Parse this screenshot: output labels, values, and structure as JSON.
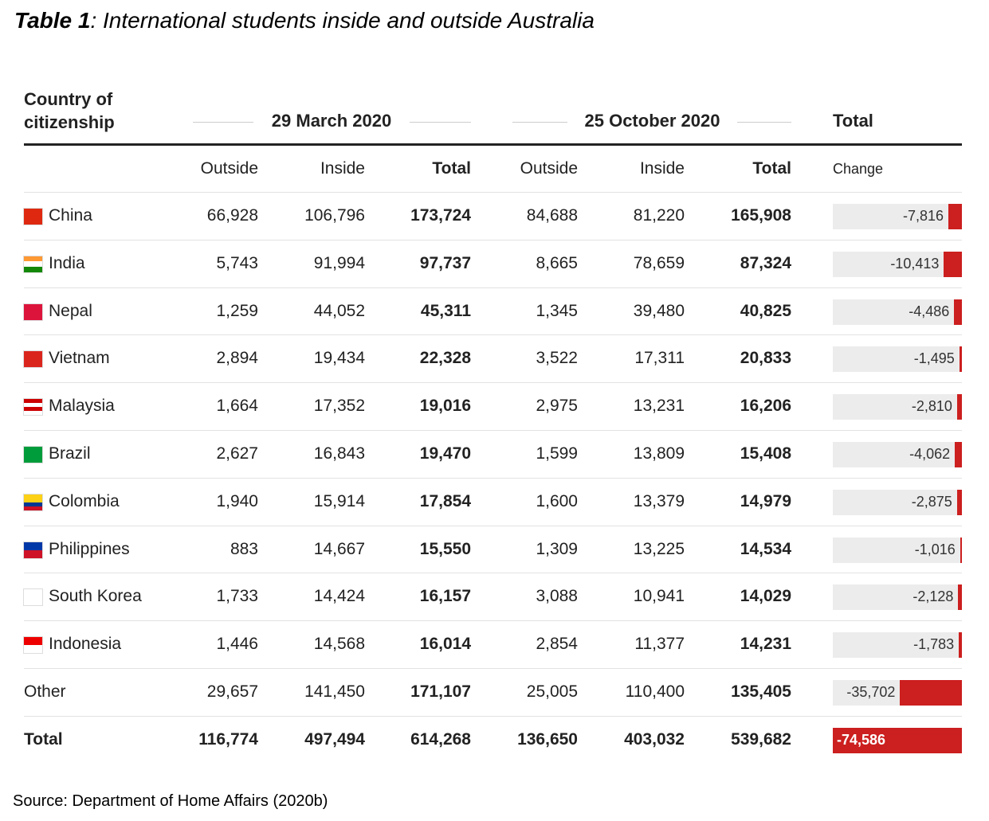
{
  "title": {
    "label": "Table 1",
    "text": ": International students inside and outside Australia"
  },
  "table": {
    "header": {
      "country": "Country of citizenship",
      "group1": "29 March 2020",
      "group2": "25 October 2020",
      "total": "Total",
      "sub": [
        "Outside",
        "Inside",
        "Total",
        "Outside",
        "Inside",
        "Total",
        "Change"
      ]
    },
    "rows": [
      [
        "China",
        "66,928",
        "106,796",
        "173,724",
        "84,688",
        "81,220",
        "165,908",
        {
          "value": -7816,
          "label": "-7,816"
        }
      ],
      [
        "India",
        "5,743",
        "91,994",
        "97,737",
        "8,665",
        "78,659",
        "87,324",
        {
          "value": -10413,
          "label": "-10,413"
        }
      ],
      [
        "Nepal",
        "1,259",
        "44,052",
        "45,311",
        "1,345",
        "39,480",
        "40,825",
        {
          "value": -4486,
          "label": "-4,486"
        }
      ],
      [
        "Vietnam",
        "2,894",
        "19,434",
        "22,328",
        "3,522",
        "17,311",
        "20,833",
        {
          "value": -1495,
          "label": "-1,495"
        }
      ],
      [
        "Malaysia",
        "1,664",
        "17,352",
        "19,016",
        "2,975",
        "13,231",
        "16,206",
        {
          "value": -2810,
          "label": "-2,810"
        }
      ],
      [
        "Brazil",
        "2,627",
        "16,843",
        "19,470",
        "1,599",
        "13,809",
        "15,408",
        {
          "value": -4062,
          "label": "-4,062"
        }
      ],
      [
        "Colombia",
        "1,940",
        "15,914",
        "17,854",
        "1,600",
        "13,379",
        "14,979",
        {
          "value": -2875,
          "label": "-2,875"
        }
      ],
      [
        "Philippines",
        "883",
        "14,667",
        "15,550",
        "1,309",
        "13,225",
        "14,534",
        {
          "value": -1016,
          "label": "-1,016"
        }
      ],
      [
        "South Korea",
        "1,733",
        "14,424",
        "16,157",
        "3,088",
        "10,941",
        "14,029",
        {
          "value": -2128,
          "label": "-2,128"
        }
      ],
      [
        "Indonesia",
        "1,446",
        "14,568",
        "16,014",
        "2,854",
        "11,377",
        "14,231",
        {
          "value": -1783,
          "label": "-1,783"
        }
      ],
      [
        "Other",
        "29,657",
        "141,450",
        "171,107",
        "25,005",
        "110,400",
        "135,405",
        {
          "value": -35702,
          "label": "-35,702"
        }
      ],
      [
        "Total",
        "116,774",
        "497,494",
        "614,268",
        "136,650",
        "403,032",
        "539,682",
        {
          "value": -74586,
          "label": "-74,586"
        }
      ]
    ]
  },
  "source": "Source: Department of Home Affairs (2020b)"
}
